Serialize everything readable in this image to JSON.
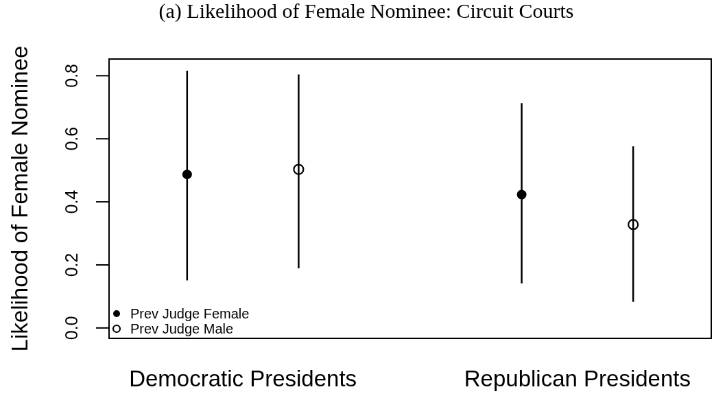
{
  "chart_data": {
    "type": "scatter",
    "title": "(a) Likelihood of Female Nominee: Circuit Courts",
    "ylabel": "Likelihood of Female Nominee",
    "categories": [
      "Democratic Presidents",
      "Republican Presidents"
    ],
    "series": [
      {
        "name": "Prev Judge Female",
        "color": "#000000",
        "values": [
          0.487,
          0.423
        ],
        "errors": [
          [
            0.151,
            0.816
          ],
          [
            0.141,
            0.713
          ]
        ]
      },
      {
        "name": "Prev Judge Male",
        "color": "#000000",
        "values": [
          0.503,
          0.328
        ],
        "errors": [
          [
            0.189,
            0.804
          ],
          [
            0.083,
            0.576
          ]
        ]
      }
    ],
    "ylim": [
      -0.033,
      0.853
    ],
    "yticks": [
      {
        "value": 0,
        "label": "0.0"
      },
      0.2,
      0.4,
      0.6,
      0.8
    ],
    "legend": "bottom left",
    "marker": "circle"
  }
}
